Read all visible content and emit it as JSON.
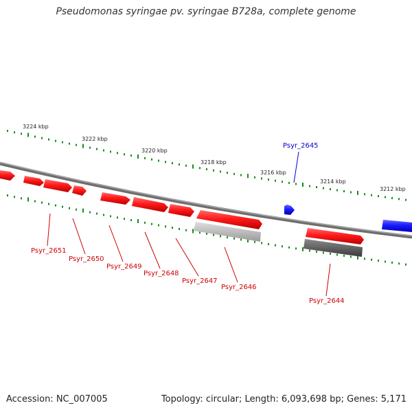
{
  "genome": {
    "title": "Pseudomonas syringae pv. syringae B728a, complete genome",
    "accession": "Accession: NC_007005",
    "summary": "Topology: circular; Length: 6,093,698 bp; Genes: 5,171"
  },
  "scale": {
    "unit": "kbp",
    "ticks": [
      "3224 kbp",
      "3222 kbp",
      "3220 kbp",
      "3218 kbp",
      "3216 kbp",
      "3214 kbp",
      "3212 kbp"
    ]
  },
  "colors": {
    "backbone": "#808080",
    "tick_marks": "#1a8a1a",
    "forward_gene": "#ee1111",
    "reverse_gene": "#1a1aee",
    "feature_light": "#b8b8b8",
    "feature_dark": "#555555",
    "label_forward": "#cc0000",
    "label_reverse": "#0000cc"
  },
  "genes": [
    {
      "id": "Psyr_2651",
      "strand": "upper"
    },
    {
      "id": "Psyr_2650",
      "strand": "upper"
    },
    {
      "id": "Psyr_2649",
      "strand": "upper"
    },
    {
      "id": "Psyr_2648",
      "strand": "upper"
    },
    {
      "id": "Psyr_2647",
      "strand": "upper"
    },
    {
      "id": "Psyr_2646",
      "strand": "upper"
    },
    {
      "id": "Psyr_2645",
      "strand": "lower"
    },
    {
      "id": "Psyr_2644",
      "strand": "upper"
    }
  ]
}
